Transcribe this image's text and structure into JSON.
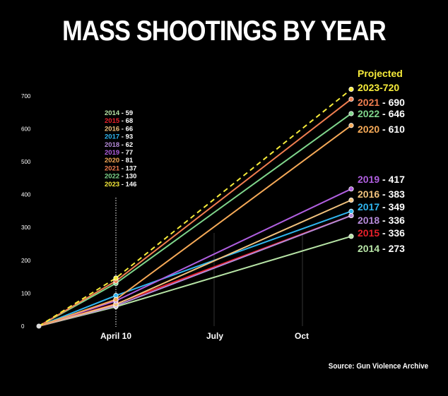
{
  "title": "MASS SHOOTINGS BY YEAR",
  "source": "Source: Gun Violence Archive",
  "chart_data": {
    "type": "line",
    "title": "MASS SHOOTINGS BY YEAR",
    "xlabel": "",
    "ylabel": "",
    "ylim": [
      0,
      700
    ],
    "yticks": [
      0,
      100,
      200,
      300,
      400,
      500,
      600,
      700
    ],
    "xticks": [
      "April 10",
      "July",
      "Oct"
    ],
    "grid": false,
    "legend": "right (inline end labels)",
    "april10_annotation": [
      {
        "year": "2014",
        "value": "59",
        "color": "#b7e4a6"
      },
      {
        "year": "2015",
        "value": "68",
        "color": "#e8202a"
      },
      {
        "year": "2016",
        "value": "66",
        "color": "#f1c27d"
      },
      {
        "year": "2017",
        "value": "93",
        "color": "#2fb6f0"
      },
      {
        "year": "2018",
        "value": "62",
        "color": "#b58ad9"
      },
      {
        "year": "2019",
        "value": "77",
        "color": "#b05fe0"
      },
      {
        "year": "2020",
        "value": "81",
        "color": "#f5a957"
      },
      {
        "year": "2021",
        "value": "137",
        "color": "#f07e50"
      },
      {
        "year": "2022",
        "value": "130",
        "color": "#7fd68c"
      },
      {
        "year": "2023",
        "value": "146",
        "color": "#f7ec3a"
      }
    ],
    "projected_label": "Projected",
    "series": [
      {
        "name": "2023",
        "end_label": "2023-720",
        "values": [
          0,
          146,
          720
        ],
        "color": "#f7ec3a",
        "dashed": true
      },
      {
        "name": "2021",
        "end_label": "2021",
        "end_value": "690",
        "values": [
          0,
          137,
          690
        ],
        "color": "#f07e50"
      },
      {
        "name": "2022",
        "end_label": "2022",
        "end_value": "646",
        "values": [
          0,
          130,
          646
        ],
        "color": "#7fd68c"
      },
      {
        "name": "2020",
        "end_label": "2020",
        "end_value": "610",
        "values": [
          0,
          81,
          610
        ],
        "color": "#f5a957"
      },
      {
        "name": "2019",
        "end_label": "2019",
        "end_value": "417",
        "values": [
          0,
          77,
          417
        ],
        "color": "#b05fe0"
      },
      {
        "name": "2016",
        "end_label": "2016",
        "end_value": "383",
        "values": [
          0,
          66,
          383
        ],
        "color": "#f1c27d"
      },
      {
        "name": "2017",
        "end_label": "2017",
        "end_value": "349",
        "values": [
          0,
          93,
          349
        ],
        "color": "#2fb6f0"
      },
      {
        "name": "2018",
        "end_label": "2018",
        "end_value": "336",
        "values": [
          0,
          62,
          336
        ],
        "color": "#b58ad9"
      },
      {
        "name": "2015",
        "end_label": "2015",
        "end_value": "336",
        "values": [
          0,
          68,
          336
        ],
        "color": "#e8202a"
      },
      {
        "name": "2014",
        "end_label": "2014",
        "end_value": "273",
        "values": [
          0,
          59,
          273
        ],
        "color": "#b7e4a6"
      }
    ]
  }
}
